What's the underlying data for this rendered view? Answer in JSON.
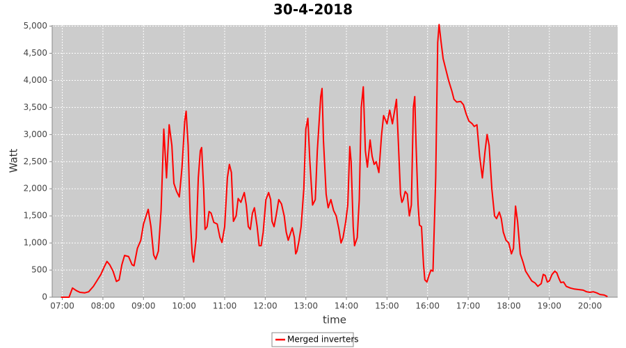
{
  "chart_data": {
    "type": "line",
    "title": "30-4-2018",
    "x_label": "time",
    "y_label": "Watt",
    "legend": "bottom",
    "grid": true,
    "xlim": [
      405,
      1241
    ],
    "ylim": [
      0,
      5020
    ],
    "xticks": [
      {
        "value": 420,
        "label": "07:00"
      },
      {
        "value": 480,
        "label": "08:00"
      },
      {
        "value": 540,
        "label": "09:00"
      },
      {
        "value": 600,
        "label": "10:00"
      },
      {
        "value": 660,
        "label": "11:00"
      },
      {
        "value": 720,
        "label": "12:00"
      },
      {
        "value": 780,
        "label": "13:00"
      },
      {
        "value": 840,
        "label": "14:00"
      },
      {
        "value": 900,
        "label": "15:00"
      },
      {
        "value": 960,
        "label": "16:00"
      },
      {
        "value": 1020,
        "label": "17:00"
      },
      {
        "value": 1080,
        "label": "18:00"
      },
      {
        "value": 1140,
        "label": "19:00"
      },
      {
        "value": 1200,
        "label": "20:00"
      }
    ],
    "yticks": [
      0,
      500,
      {
        "value": 1000,
        "label": "1,000"
      },
      {
        "value": 1500,
        "label": "1,500"
      },
      {
        "value": 2000,
        "label": "2,000"
      },
      {
        "value": 2500,
        "label": "2,500"
      },
      {
        "value": 3000,
        "label": "3,000"
      },
      {
        "value": 3500,
        "label": "3,500"
      },
      {
        "value": 4000,
        "label": "4,000"
      },
      {
        "value": 4500,
        "label": "4,500"
      },
      {
        "value": 5000,
        "label": "5,000"
      }
    ],
    "x": [
      418,
      430,
      435,
      441,
      446,
      453,
      459,
      466,
      471,
      477,
      482,
      486,
      490,
      495,
      500,
      504,
      508,
      512,
      518,
      523,
      526,
      531,
      536,
      540,
      547,
      551,
      555,
      558,
      562,
      566,
      570,
      574,
      578,
      582,
      585,
      589,
      593,
      597,
      601,
      603,
      606,
      609,
      612,
      614,
      618,
      621,
      624,
      626,
      629,
      631,
      634,
      637,
      640,
      644,
      649,
      653,
      656,
      660,
      664,
      667,
      670,
      673,
      677,
      680,
      684,
      689,
      692,
      695,
      698,
      701,
      704,
      708,
      711,
      714,
      717,
      721,
      725,
      728,
      730,
      733,
      736,
      740,
      744,
      748,
      751,
      754,
      760,
      763,
      765,
      767,
      770,
      773,
      777,
      780,
      783,
      786,
      790,
      794,
      797,
      802,
      804,
      806,
      810,
      813,
      817,
      821,
      825,
      829,
      832,
      835,
      839,
      842,
      845,
      847,
      850,
      852,
      856,
      859,
      862,
      865,
      868,
      871,
      875,
      878,
      881,
      884,
      888,
      892,
      895,
      900,
      904,
      908,
      912,
      914,
      917,
      920,
      922,
      924,
      927,
      930,
      933,
      936,
      939,
      941,
      943,
      946,
      948,
      951,
      954,
      956,
      959,
      962,
      965,
      968,
      972,
      975,
      977,
      980,
      983,
      987,
      991,
      996,
      999,
      1003,
      1009,
      1013,
      1017,
      1021,
      1026,
      1029,
      1033,
      1037,
      1041,
      1045,
      1048,
      1051,
      1055,
      1059,
      1062,
      1066,
      1069,
      1072,
      1076,
      1080,
      1084,
      1087,
      1090,
      1093,
      1097,
      1101,
      1105,
      1109,
      1114,
      1119,
      1123,
      1128,
      1131,
      1134,
      1137,
      1140,
      1144,
      1148,
      1151,
      1154,
      1157,
      1161,
      1165,
      1171,
      1177,
      1184,
      1190,
      1195,
      1200,
      1205,
      1210,
      1215,
      1221,
      1226
    ],
    "series": [
      {
        "name": "Merged inverters",
        "color": "#ff0000",
        "values": [
          0,
          0,
          170,
          120,
          90,
          80,
          100,
          200,
          300,
          420,
          560,
          660,
          600,
          480,
          290,
          320,
          600,
          770,
          750,
          600,
          580,
          900,
          1050,
          1350,
          1620,
          1300,
          780,
          700,
          850,
          1600,
          3100,
          2200,
          3180,
          2800,
          2100,
          1950,
          1850,
          2400,
          3250,
          3430,
          2800,
          1500,
          800,
          650,
          1100,
          2200,
          2700,
          2760,
          2000,
          1250,
          1300,
          1580,
          1550,
          1380,
          1350,
          1100,
          1010,
          1300,
          2200,
          2450,
          2300,
          1400,
          1500,
          1820,
          1750,
          1930,
          1700,
          1300,
          1250,
          1550,
          1650,
          1300,
          950,
          950,
          1200,
          1800,
          1930,
          1800,
          1400,
          1300,
          1500,
          1800,
          1720,
          1500,
          1200,
          1050,
          1280,
          1100,
          800,
          850,
          1050,
          1300,
          2000,
          3100,
          3300,
          2500,
          1700,
          1800,
          2700,
          3700,
          3850,
          2900,
          1900,
          1650,
          1800,
          1600,
          1500,
          1250,
          1000,
          1100,
          1400,
          1700,
          2780,
          2500,
          1300,
          950,
          1100,
          1800,
          3500,
          3880,
          2700,
          2400,
          2900,
          2600,
          2450,
          2500,
          2300,
          3000,
          3350,
          3200,
          3450,
          3200,
          3500,
          3650,
          2800,
          1900,
          1750,
          1800,
          1950,
          1900,
          1500,
          1700,
          3500,
          3700,
          2800,
          1700,
          1330,
          1300,
          600,
          320,
          280,
          400,
          500,
          480,
          2200,
          4700,
          5030,
          4700,
          4400,
          4200,
          4000,
          3800,
          3650,
          3600,
          3610,
          3550,
          3380,
          3250,
          3200,
          3150,
          3180,
          2600,
          2200,
          2700,
          3000,
          2800,
          2000,
          1500,
          1450,
          1570,
          1450,
          1200,
          1050,
          1000,
          800,
          900,
          1680,
          1400,
          800,
          650,
          480,
          400,
          300,
          260,
          200,
          250,
          420,
          400,
          280,
          300,
          420,
          480,
          450,
          350,
          270,
          280,
          200,
          170,
          150,
          140,
          130,
          100,
          90,
          100,
          80,
          50,
          40,
          10
        ]
      }
    ]
  }
}
